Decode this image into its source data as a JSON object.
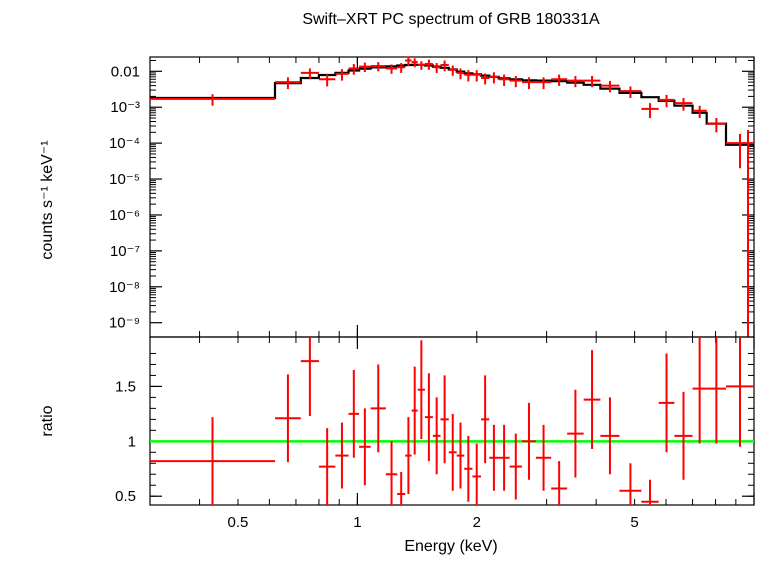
{
  "chart_data": [
    {
      "type": "scatter",
      "title": "Swift–XRT PC spectrum of GRB 180331A",
      "xlabel": "",
      "ylabel": "counts s⁻¹ keV⁻¹",
      "xscale": "log",
      "yscale": "log",
      "xlim": [
        0.3,
        10
      ],
      "ylim": [
        4e-10,
        0.025
      ],
      "y_tick_labels": [
        "0.01",
        "10⁻³",
        "10⁻⁴",
        "10⁻⁵",
        "10⁻⁶",
        "10⁻⁷",
        "10⁻⁸",
        "10⁻⁹"
      ],
      "colors": {
        "data": "#ff0000",
        "model": "#000000"
      },
      "series": [
        {
          "role": "data",
          "x_low": [
            0.3,
            0.62,
            0.72,
            0.8,
            0.88,
            0.95,
            1.01,
            1.08,
            1.18,
            1.26,
            1.32,
            1.37,
            1.42,
            1.48,
            1.55,
            1.62,
            1.7,
            1.78,
            1.86,
            1.95,
            2.05,
            2.15,
            2.27,
            2.42,
            2.6,
            2.82,
            3.08,
            3.38,
            3.72,
            4.1,
            4.58,
            5.2,
            5.75,
            6.3,
            7.0,
            7.6,
            8.5
          ],
          "x_high": [
            0.62,
            0.72,
            0.8,
            0.88,
            0.95,
            1.01,
            1.08,
            1.18,
            1.26,
            1.32,
            1.37,
            1.42,
            1.48,
            1.55,
            1.62,
            1.7,
            1.78,
            1.86,
            1.95,
            2.05,
            2.15,
            2.27,
            2.42,
            2.6,
            2.82,
            3.08,
            3.38,
            3.72,
            4.1,
            4.58,
            5.2,
            5.75,
            6.3,
            7.0,
            7.6,
            8.5,
            10.0
          ],
          "y": [
            0.0017,
            0.005,
            0.009,
            0.006,
            0.0085,
            0.012,
            0.0135,
            0.014,
            0.012,
            0.013,
            0.02,
            0.018,
            0.015,
            0.016,
            0.013,
            0.015,
            0.011,
            0.009,
            0.008,
            0.008,
            0.0065,
            0.007,
            0.006,
            0.0055,
            0.005,
            0.005,
            0.006,
            0.0055,
            0.0055,
            0.004,
            0.0028,
            0.0009,
            0.0016,
            0.0013,
            0.0008,
            0.00035,
            0.0001
          ],
          "y_err": [
            0.0006,
            0.0018,
            0.003,
            0.0022,
            0.003,
            0.004,
            0.004,
            0.004,
            0.0035,
            0.004,
            0.006,
            0.005,
            0.004,
            0.005,
            0.004,
            0.005,
            0.0035,
            0.003,
            0.0028,
            0.0028,
            0.0022,
            0.0024,
            0.0021,
            0.0019,
            0.0018,
            0.0018,
            0.0021,
            0.0019,
            0.0019,
            0.0014,
            0.001,
            0.0004,
            0.0006,
            0.0005,
            0.0003,
            0.00015,
            8e-05
          ]
        },
        {
          "role": "model",
          "step_edges": [
            0.3,
            0.62,
            0.72,
            0.8,
            0.88,
            0.95,
            1.01,
            1.08,
            1.18,
            1.26,
            1.32,
            1.37,
            1.42,
            1.48,
            1.55,
            1.62,
            1.7,
            1.78,
            1.86,
            1.95,
            2.05,
            2.15,
            2.27,
            2.42,
            2.6,
            2.82,
            3.08,
            3.38,
            3.72,
            4.1,
            4.58,
            5.2,
            5.75,
            6.3,
            7.0,
            7.6,
            8.5,
            10.0
          ],
          "y": [
            0.0018,
            0.0047,
            0.0065,
            0.0079,
            0.009,
            0.0105,
            0.0118,
            0.0128,
            0.0138,
            0.0145,
            0.015,
            0.0152,
            0.0152,
            0.0145,
            0.0135,
            0.0125,
            0.0112,
            0.0098,
            0.0088,
            0.0082,
            0.0076,
            0.007,
            0.0064,
            0.006,
            0.0056,
            0.0055,
            0.0053,
            0.0048,
            0.0042,
            0.0033,
            0.0025,
            0.0019,
            0.0015,
            0.0011,
            0.0007,
            0.00035,
            9e-05
          ]
        }
      ]
    },
    {
      "type": "scatter",
      "title": "",
      "xlabel": "Energy (keV)",
      "ylabel": "ratio",
      "xscale": "log",
      "yscale": "linear",
      "xlim": [
        0.3,
        10
      ],
      "ylim": [
        0.42,
        1.95
      ],
      "x_ticks": [
        0.5,
        1,
        2,
        5
      ],
      "x_tick_labels": [
        "0.5",
        "1",
        "2",
        "5"
      ],
      "y_ticks": [
        0.5,
        1,
        1.5
      ],
      "y_tick_labels": [
        "0.5",
        "1",
        "1.5"
      ],
      "reference_line": {
        "y": 1,
        "color": "#00ff00"
      },
      "colors": {
        "data": "#ff0000"
      },
      "series": [
        {
          "role": "data",
          "x_low": [
            0.3,
            0.62,
            0.72,
            0.8,
            0.88,
            0.95,
            1.01,
            1.08,
            1.18,
            1.26,
            1.32,
            1.37,
            1.42,
            1.48,
            1.55,
            1.62,
            1.7,
            1.78,
            1.86,
            1.95,
            2.05,
            2.15,
            2.27,
            2.42,
            2.6,
            2.82,
            3.08,
            3.38,
            3.72,
            4.1,
            4.58,
            5.2,
            5.75,
            6.3,
            7.0,
            7.6,
            8.5
          ],
          "x_high": [
            0.62,
            0.72,
            0.8,
            0.88,
            0.95,
            1.01,
            1.08,
            1.18,
            1.26,
            1.32,
            1.37,
            1.42,
            1.48,
            1.55,
            1.62,
            1.7,
            1.78,
            1.86,
            1.95,
            2.05,
            2.15,
            2.27,
            2.42,
            2.6,
            2.82,
            3.08,
            3.38,
            3.72,
            4.1,
            4.58,
            5.2,
            5.75,
            6.3,
            7.0,
            7.6,
            8.5,
            10.0
          ],
          "y": [
            0.82,
            1.21,
            1.73,
            0.77,
            0.87,
            1.25,
            0.95,
            1.3,
            0.7,
            0.52,
            0.87,
            1.28,
            1.47,
            1.22,
            1.05,
            1.2,
            0.9,
            0.87,
            0.75,
            0.68,
            1.2,
            0.85,
            0.85,
            0.77,
            1.0,
            0.85,
            0.57,
            1.07,
            1.38,
            1.05,
            0.55,
            0.45,
            1.35,
            1.05,
            1.48,
            1.48,
            1.5
          ],
          "y_err": [
            0.4,
            0.4,
            0.5,
            0.35,
            0.3,
            0.4,
            0.35,
            0.4,
            0.3,
            0.2,
            0.35,
            0.4,
            0.45,
            0.4,
            0.35,
            0.4,
            0.35,
            0.3,
            0.3,
            0.3,
            0.4,
            0.3,
            0.3,
            0.3,
            0.35,
            0.3,
            0.25,
            0.4,
            0.45,
            0.35,
            0.25,
            0.2,
            0.45,
            0.4,
            0.5,
            0.5,
            0.55
          ]
        }
      ]
    }
  ]
}
